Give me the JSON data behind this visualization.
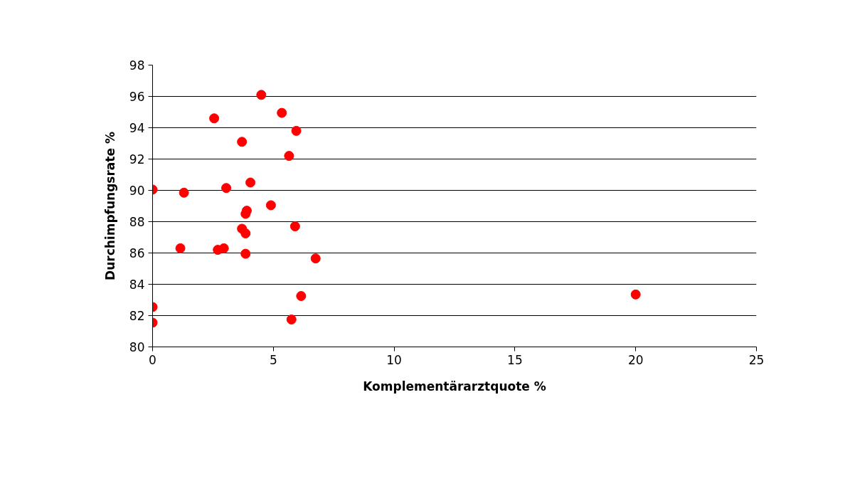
{
  "chart_data": {
    "type": "scatter",
    "xlabel": "Komplementärarztquote %",
    "ylabel": "Durchimpfungsrate %",
    "x": [
      0,
      1.3,
      2.55,
      4.5,
      5.35,
      5.95,
      3.7,
      5.65,
      4.05,
      3.05,
      4.9,
      3.9,
      3.85,
      5.9,
      3.7,
      3.85,
      1.15,
      2.7,
      2.95,
      3.85,
      6.75,
      6.15,
      20,
      0,
      0,
      5.75
    ],
    "series": [
      {
        "color": "#ff0000",
        "values": [
          90.05,
          89.85,
          94.6,
          96.1,
          94.95,
          93.8,
          93.1,
          92.2,
          90.5,
          90.15,
          89.05,
          88.7,
          88.5,
          87.7,
          87.55,
          87.25,
          86.3,
          86.2,
          86.3,
          85.95,
          85.65,
          83.25,
          83.35,
          82.55,
          81.55,
          81.75
        ]
      }
    ],
    "xlim": [
      0,
      25
    ],
    "xticks": [
      0,
      5,
      10,
      15,
      20,
      25
    ],
    "ylim": [
      80,
      98
    ],
    "yticks": [
      80,
      82,
      84,
      86,
      88,
      90,
      92,
      94,
      96,
      98
    ],
    "grid": "y",
    "marker": "circle"
  }
}
